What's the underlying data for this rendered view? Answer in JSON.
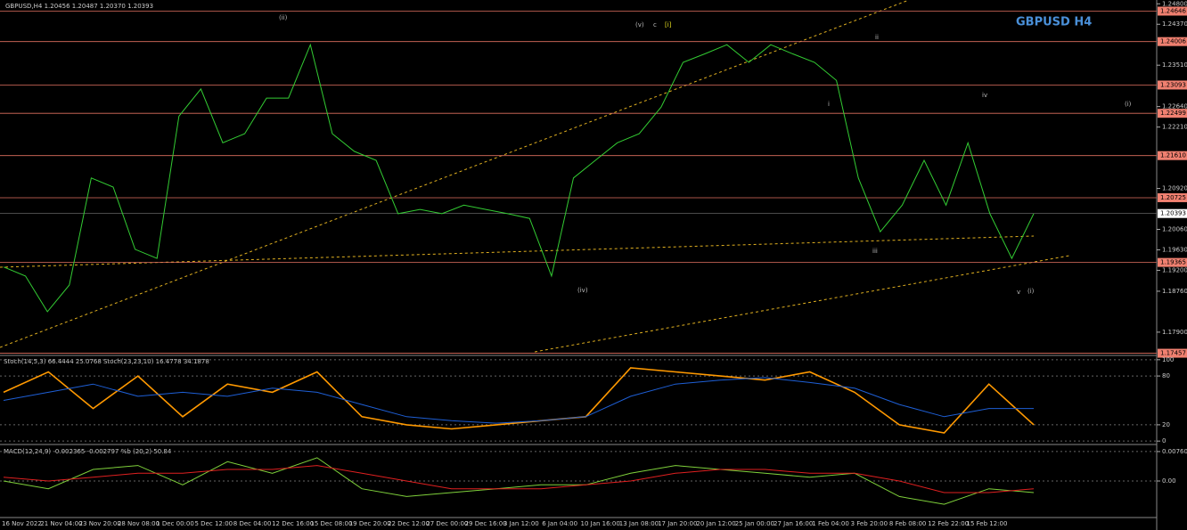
{
  "chart_data": [
    {
      "type": "line",
      "title": "GBPUSD,H4 1.20456 1.20487 1.20370 1.20393",
      "watermark": "GBPUSD H4",
      "series": [
        {
          "color": "#33cc33",
          "values": [
            1.1927,
            1.1908,
            1.1833,
            1.1889,
            1.2114,
            1.2095,
            1.1964,
            1.1945,
            1.2244,
            1.2301,
            1.2188,
            1.2207,
            1.2282,
            1.2282,
            1.2394,
            1.2207,
            1.217,
            1.2151,
            1.2039,
            1.2048,
            1.2039,
            1.2057,
            1.2048,
            1.2039,
            1.2029,
            1.1908,
            1.2114,
            1.2151,
            1.2188,
            1.2207,
            1.2263,
            1.2357,
            1.2375,
            1.2394,
            1.2357,
            1.2394,
            1.2375,
            1.2357,
            1.2319,
            1.2114,
            1.2001,
            1.2057,
            1.2151,
            1.2057,
            1.2188,
            1.2039,
            1.1945,
            1.2039
          ]
        }
      ],
      "ylim": [
        1.1743,
        1.2488
      ],
      "yticks": [
        {
          "value": 1.248,
          "label": "1.24800"
        },
        {
          "value": 1.2437,
          "label": "1.24370"
        },
        {
          "value": 1.2351,
          "label": "1.23510"
        },
        {
          "value": 1.2264,
          "label": "1.22640"
        },
        {
          "value": 1.2221,
          "label": "1.22210"
        },
        {
          "value": 1.2092,
          "label": "1.20920"
        },
        {
          "value": 1.2006,
          "label": "1.20060"
        },
        {
          "value": 1.1963,
          "label": "1.19630"
        },
        {
          "value": 1.192,
          "label": "1.19200"
        },
        {
          "value": 1.1876,
          "label": "1.18760"
        },
        {
          "value": 1.179,
          "label": "1.17900"
        }
      ],
      "levels": [
        {
          "value": 1.24646,
          "label": "1.24646"
        },
        {
          "value": 1.24006,
          "label": "1.24006"
        },
        {
          "value": 1.23093,
          "label": "1.23093"
        },
        {
          "value": 1.22499,
          "label": "1.22499"
        },
        {
          "value": 1.2161,
          "label": "1.21610"
        },
        {
          "value": 1.20725,
          "label": "1.20725"
        },
        {
          "value": 1.19365,
          "label": "1.19365"
        },
        {
          "value": 1.17457,
          "label": "1.17457"
        }
      ],
      "current": {
        "value": 1.20393,
        "label": "1.20393"
      },
      "annotations": [
        "(ii)",
        "(v)",
        "c",
        "[i]",
        "i",
        "ii",
        "iii",
        "iv",
        "(i)",
        "(iv)",
        "v",
        "(i)"
      ],
      "date_labels": [
        "16 Nov 2022",
        "21 Nov 04:00",
        "23 Nov 20:00",
        "28 Nov 08:00",
        "1 Dec 00:00",
        "5 Dec 12:00",
        "8 Dec 04:00",
        "12 Dec 16:00",
        "15 Dec 08:00",
        "19 Dec 20:00",
        "22 Dec 12:00",
        "27 Dec 00:00",
        "29 Dec 16:00",
        "3 Jan 12:00",
        "6 Jan 04:00",
        "10 Jan 16:00",
        "13 Jan 08:00",
        "17 Jan 20:00",
        "20 Jan 12:00",
        "25 Jan 00:00",
        "27 Jan 16:00",
        "1 Feb 04:00",
        "3 Feb 20:00",
        "8 Feb 08:00",
        "12 Feb 22:00",
        "15 Feb 12:00"
      ]
    },
    {
      "type": "line",
      "title": "Stoch(14,5,3) 66.4444 25.0768  Stoch(23,23,10) 16.4778 34.1878",
      "series": [
        {
          "color": "#ff9900",
          "values": [
            60,
            85,
            40,
            80,
            30,
            70,
            60,
            85,
            30,
            20,
            15,
            20,
            25,
            30,
            90,
            85,
            80,
            75,
            85,
            60,
            20,
            10,
            70,
            20
          ]
        },
        {
          "color": "#1e5fd6",
          "values": [
            50,
            60,
            70,
            55,
            60,
            55,
            65,
            60,
            45,
            30,
            25,
            22,
            25,
            30,
            55,
            70,
            75,
            78,
            72,
            65,
            45,
            30,
            40,
            40
          ]
        }
      ],
      "ylim": [
        -2,
        102
      ],
      "yticks": [
        100,
        80,
        20,
        0
      ]
    },
    {
      "type": "line",
      "title": "MACD(12,24,9) -0.002365 -0.002797  %b (20,2) 50.84",
      "series": [
        {
          "color": "#7fd13b",
          "values": [
            0,
            -0.002,
            0.003,
            0.004,
            -0.001,
            0.005,
            0.002,
            0.006,
            -0.002,
            -0.004,
            -0.003,
            -0.002,
            -0.001,
            -0.001,
            0.002,
            0.004,
            0.003,
            0.002,
            0.001,
            0.002,
            -0.004,
            -0.006,
            -0.002,
            -0.003
          ]
        },
        {
          "color": "#e02020",
          "values": [
            0.001,
            0,
            0.001,
            0.002,
            0.002,
            0.003,
            0.003,
            0.004,
            0.002,
            0,
            -0.002,
            -0.002,
            -0.002,
            -0.001,
            0,
            0.002,
            0.003,
            0.003,
            0.002,
            0.002,
            0,
            -0.003,
            -0.003,
            -0.002
          ]
        }
      ],
      "ylim": [
        -0.0092,
        0.0092
      ],
      "yticks": [
        {
          "value": 0.007606,
          "label": "0.007606"
        },
        {
          "value": 0,
          "label": "0.00"
        }
      ]
    }
  ]
}
